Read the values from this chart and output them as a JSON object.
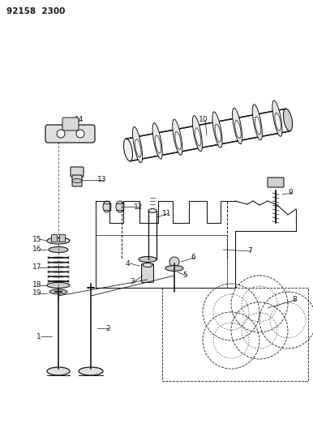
{
  "title": "92158 2300",
  "bg_color": "#ffffff",
  "line_color": "#1a1a1a",
  "fig_width": 3.86,
  "fig_height": 5.33,
  "dpi": 100
}
